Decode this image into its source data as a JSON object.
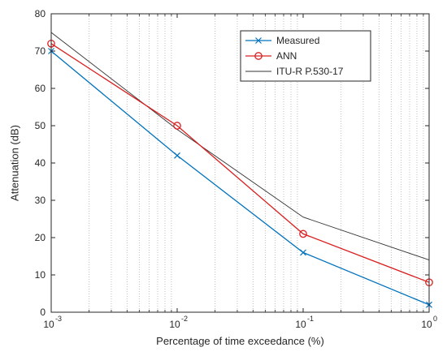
{
  "chart_data": {
    "type": "line",
    "x_scale": "log",
    "x_ticks": [
      0.001,
      0.01,
      0.1,
      1
    ],
    "x_tick_labels": [
      {
        "base": "10",
        "exp": "-3"
      },
      {
        "base": "10",
        "exp": "-2"
      },
      {
        "base": "10",
        "exp": "-1"
      },
      {
        "base": "10",
        "exp": "0"
      }
    ],
    "xlim": [
      0.001,
      1
    ],
    "ylim": [
      0,
      80
    ],
    "y_ticks": [
      0,
      10,
      20,
      30,
      40,
      50,
      60,
      70,
      80
    ],
    "xlabel": "Percentage of time exceedance (%)",
    "ylabel": "Attenuation (dB)",
    "grid": "minor vertical dotted lines on x",
    "legend_position": "top-right",
    "series": [
      {
        "name": "Measured",
        "color": "#0072BD",
        "marker": "x",
        "x": [
          0.001,
          0.01,
          0.1,
          1
        ],
        "y": [
          70,
          42,
          16,
          2
        ]
      },
      {
        "name": "ANN",
        "color": "#D92020",
        "marker": "o",
        "x": [
          0.001,
          0.01,
          0.1,
          1
        ],
        "y": [
          72,
          50,
          21,
          8
        ]
      },
      {
        "name": "ITU-R  P.530-17",
        "color": "#333333",
        "marker": "none",
        "x": [
          0.001,
          0.01,
          0.1,
          1
        ],
        "y": [
          75,
          49,
          25.5,
          14
        ]
      }
    ]
  }
}
